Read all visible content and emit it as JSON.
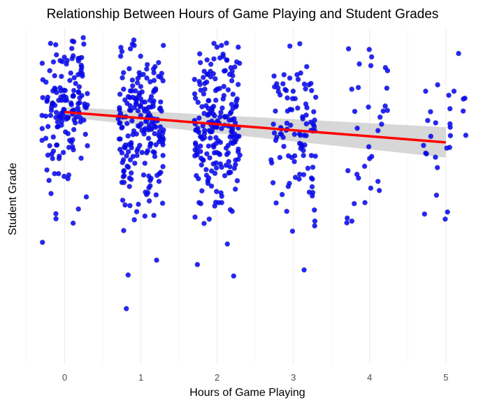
{
  "chart_data": {
    "type": "scatter",
    "title": "Relationship Between Hours of Game Playing and Student Grades",
    "xlabel": "Hours of Game Playing",
    "ylabel": "Student Grade",
    "x_ticks": [
      "0",
      "1",
      "2",
      "3",
      "4",
      "5"
    ],
    "xlim": [
      -0.5,
      5.35
    ],
    "ylim": [
      0,
      100
    ],
    "grid": "vertical",
    "point_color": "#0000ff",
    "trend_color": "#ff0000",
    "band_color": "#bdbdbd",
    "points": {
      "0": [
        75.1,
        95.0,
        86.6,
        80.5,
        79.7,
        74.4,
        87.3,
        86.4,
        72.7,
        79.2,
        83.5,
        70.6,
        77.5,
        74.0,
        73.5,
        77.7,
        75.5,
        76.2,
        88.3,
        86.6,
        57.8,
        63.0,
        71.8,
        56.7,
        56.7,
        78.5,
        72.6,
        91.2,
        74.6,
        85.6,
        74.6,
        65.0,
        54.7,
        74.9,
        61.2,
        78.5,
        49.8,
        75.1,
        73.5,
        77.3,
        72.2,
        79.9,
        82.5,
        73.4,
        72.9,
        72.1,
        75.6,
        78.2,
        56.3,
        83.9,
        63.8,
        73.3,
        69.8,
        63.4,
        61.9,
        90.3,
        81.3,
        76.6,
        71.1,
        84.6,
        67.6,
        62.2,
        96.1,
        66.6,
        77.0,
        85.8,
        79.5,
        62.5,
        90.2,
        81.5,
        89.3,
        73.2,
        84.4,
        95.9,
        79.3,
        90.3,
        90.0,
        81.4,
        90.9,
        81.7,
        55.9,
        68.4,
        50.8,
        73.6,
        97.1,
        66.6,
        36.3,
        77.7,
        66.1,
        82.2,
        75.1,
        79.9,
        82.1,
        86.1,
        77.1,
        91.3,
        95.4,
        73.2,
        66.8,
        88.9,
        68.6,
        79.8,
        73.8,
        77.4,
        67.2,
        81.3,
        74.6,
        80.8,
        43.3,
        87.5,
        61.2,
        81.0,
        73.8,
        78.5,
        89.5,
        80.8,
        85.2,
        91.0,
        90.9,
        65.0,
        64.5,
        61.3,
        44.8,
        74.0,
        89.9,
        79.4,
        77.2,
        91.7,
        64.7,
        75.6,
        93.9,
        95.2,
        75.3,
        79.4,
        55.2,
        76.4,
        75.4,
        73.2,
        65.2,
        42.0,
        70.7,
        73.7,
        77.5,
        65.2,
        78.5,
        78.5,
        76.3,
        81.4,
        69.1,
        77.8,
        46.2,
        92.0,
        79.8,
        75.8,
        70.7,
        85.7,
        72.1,
        70.1
      ],
      "1": [
        72.2,
        77.3,
        60.0,
        54.1,
        81.8,
        39.8,
        76.7,
        65.6,
        53.1,
        94.8,
        67.9,
        70.7,
        76.2,
        84.5,
        85.2,
        89.7,
        76.3,
        84.3,
        58.6,
        52.9,
        75.3,
        47.9,
        75.6,
        69.9,
        72.4,
        81.5,
        55.0,
        69.5,
        79.6,
        81.0,
        74.1,
        48.6,
        93.8,
        64.6,
        63.2,
        76.3,
        57.6,
        91.6,
        86.7,
        59.8,
        78.5,
        62.9,
        69.5,
        96.4,
        64.1,
        85.0,
        70.1,
        95.2,
        57.1,
        78.0,
        75.9,
        79.2,
        85.6,
        60.8,
        63.9,
        78.7,
        77.8,
        85.3,
        67.5,
        75.7,
        62.1,
        78.9,
        73.6,
        66.2,
        64.4,
        86.5,
        65.6,
        94.8,
        44.3,
        80.6,
        76.4,
        54.4,
        81.3,
        86.7,
        51.2,
        87.8,
        56.3,
        93.0,
        75.9,
        72.3,
        73.8,
        74.9,
        56.9,
        81.9,
        70.1,
        75.3,
        63.0,
        68.1,
        58.9,
        57.4,
        79.6,
        67.7,
        70.8,
        81.3,
        79.4,
        72.4,
        71.6,
        64.8,
        84.0,
        77.6,
        65.3,
        70.5,
        77.6,
        63.2,
        47.4,
        62.9,
        87.9,
        69.4,
        76.8,
        74.0,
        94.2,
        68.3,
        72.5,
        69.2,
        62.0,
        80.3,
        55.4,
        78.3,
        78.9,
        73.3,
        75.9,
        55.8,
        88.5,
        75.4,
        89.1,
        50.5,
        82.8,
        60.8,
        44.1,
        86.2,
        87.8,
        83.7,
        71.8,
        66.9,
        63.0,
        68.6,
        65.3,
        71.6,
        70.3,
        66.9,
        45.4,
        65.1,
        66.1,
        52.5,
        85.9,
        71.2,
        77.9,
        71.5,
        54.7,
        73.4,
        65.9,
        79.3,
        67.0,
        65.2,
        56.2,
        76.7,
        61.8,
        73.0,
        48.8,
        65.3,
        61.8,
        59.8,
        68.8,
        72.9,
        55.3,
        50.4,
        62.1,
        63.5,
        69.7,
        56.1,
        81.5,
        43.0,
        67.2,
        82.6,
        56.7,
        80.0,
        71.7,
        56.0,
        86.7,
        64.4,
        69.7,
        68.5,
        47.6,
        74.6,
        70.6,
        70.9,
        85.1,
        58.8,
        84.4,
        81.0,
        81.3,
        26.6,
        76.5,
        91.6,
        67.0,
        31.0,
        63.4,
        72.8,
        51.0,
        76.9,
        78.6,
        54.1,
        78.0,
        68.5,
        73.9,
        70.3,
        75.5,
        47.2,
        70.5,
        16.6,
        73.5,
        65.4
      ],
      "2": [
        76.1,
        73.2,
        58.4,
        66.9,
        63.0,
        95.5,
        87.3,
        71.6,
        62.0,
        64.9,
        60.7,
        59.2,
        68.1,
        87.2,
        74.6,
        70.7,
        81.8,
        86.2,
        43.8,
        56.2,
        64.9,
        72.3,
        76.7,
        64.6,
        69.4,
        56.1,
        59.4,
        77.9,
        66.5,
        67.7,
        75.0,
        70.9,
        62.3,
        67.4,
        77.0,
        67.6,
        69.1,
        94.3,
        53.8,
        55.2,
        85.5,
        79.9,
        63.0,
        56.8,
        67.4,
        82.6,
        62.7,
        65.3,
        91.1,
        66.4,
        56.9,
        73.0,
        89.2,
        65.7,
        81.5,
        71.7,
        55.4,
        78.5,
        66.0,
        71.9,
        70.1,
        84.3,
        64.0,
        51.4,
        75.7,
        95.4,
        72.7,
        62.4,
        78.2,
        70.3,
        61.0,
        83.2,
        94.8,
        62.4,
        74.1,
        81.4,
        67.7,
        65.7,
        62.6,
        29.7,
        47.8,
        45.5,
        76.6,
        72.1,
        60.3,
        86.3,
        52.1,
        41.9,
        63.2,
        57.5,
        68.6,
        90.8,
        80.4,
        76.3,
        73.7,
        59.9,
        70.9,
        56.1,
        64.3,
        89.9,
        57.1,
        78.4,
        62.9,
        69.0,
        48.1,
        57.9,
        73.9,
        69.6,
        83.2,
        72.4,
        88.2,
        77.3,
        84.9,
        81.6,
        74.9,
        69.7,
        54.6,
        59.3,
        84.7,
        53.0,
        69.2,
        84.1,
        71.1,
        48.2,
        66.0,
        74.6,
        48.1,
        72.5,
        85.8,
        63.8,
        58.6,
        65.8,
        75.1,
        61.4,
        64.3,
        63.3,
        43.2,
        67.8,
        51.0,
        88.4,
        59.6,
        58.3,
        70.2,
        58.8,
        47.1,
        70.6,
        76.1,
        57.1,
        76.6,
        71.9,
        50.0,
        60.8,
        78.9,
        70.5,
        82.0,
        79.1,
        74.5,
        74.3,
        80.3,
        69.5,
        67.0,
        73.6,
        70.6,
        69.3,
        91.5,
        70.2,
        61.3,
        69.3,
        48.1,
        71.1,
        46.0,
        89.7,
        59.6,
        65.1,
        68.4,
        76.2,
        87.1,
        26.3,
        86.2,
        60.7,
        73.7,
        67.5,
        65.1,
        71.5,
        66.1,
        62.2,
        72.6,
        54.6,
        51.6,
        67.6,
        85.3,
        67.3,
        71.8,
        87.1,
        90.5,
        83.5,
        90.5,
        92.2,
        70.1,
        86.4,
        62.9,
        74.5,
        83.9,
        76.9,
        78.9,
        35.8,
        69.5,
        92.3,
        73.5,
        87.1,
        81.8,
        90.4,
        80.4,
        78.4,
        94.3,
        89.5
      ],
      "3": [
        55.4,
        58.3,
        81.1,
        65.5,
        75.7,
        79.0,
        79.4,
        41.2,
        69.4,
        60.8,
        45.9,
        48.0,
        86.6,
        71.5,
        72.0,
        68.1,
        45.5,
        64.8,
        72.6,
        68.5,
        73.0,
        56.4,
        61.5,
        81.4,
        73.6,
        70.7,
        55.1,
        62.0,
        75.8,
        62.1,
        81.4,
        28.1,
        60.3,
        82.2,
        61.9,
        65.7,
        61.5,
        81.2,
        67.5,
        65.1,
        52.8,
        55.1,
        50.5,
        68.0,
        65.2,
        71.4,
        83.4,
        86.1,
        84.7,
        85.1,
        82.5,
        68.4,
        71.1,
        69.9,
        80.1,
        62.0,
        58.6,
        54.0,
        64.7,
        51.2,
        75.3,
        95.3,
        71.4,
        81.9,
        74.1,
        81.7,
        69.6,
        52.9,
        71.7,
        94.6,
        83.1,
        66.6,
        51.1,
        70.0,
        69.6,
        83.3,
        55.6,
        77.4,
        79.0,
        69.5,
        83.5,
        75.3,
        68.4,
        68.8,
        85.7,
        83.4,
        88.5,
        86.1,
        62.1,
        79.2,
        64.2,
        67.5,
        68.1,
        76.2,
        75.1,
        68.5,
        56.5,
        39.6,
        70.4,
        59.9,
        42.6,
        63.6,
        76.3,
        53.8,
        50.1
      ],
      "4": [
        76.8,
        82.1,
        73.5,
        88.8,
        75.5,
        69.5,
        71.4,
        87.3,
        43.5,
        42.1,
        76.5,
        93.6,
        93.8,
        61.8,
        70.2,
        42.6,
        75.3,
        89.3,
        88.2,
        81.8,
        52.4,
        58.9,
        47.8,
        48.1,
        51.7,
        57.6,
        56.5,
        64.7,
        55.4,
        61.2,
        54.4,
        91.4,
        75.2,
        82.3
      ],
      "5": [
        71.5,
        70.5,
        43.2,
        58.5,
        61.6,
        50.3,
        76.0,
        78.9,
        75.1,
        68.0,
        68.1,
        45.3,
        80.0,
        72.5,
        64.3,
        44.7,
        79.1,
        62.6,
        71.8,
        81.2,
        75.3,
        65.1,
        83.1,
        81.2,
        62.8,
        64.5,
        92.4,
        67.8
      ]
    },
    "trend": {
      "x": [
        0,
        5
      ],
      "y": [
        75.0,
        66.0
      ]
    },
    "band": {
      "lower": [
        73.5,
        61.5
      ],
      "upper": [
        76.5,
        70.5
      ]
    }
  }
}
